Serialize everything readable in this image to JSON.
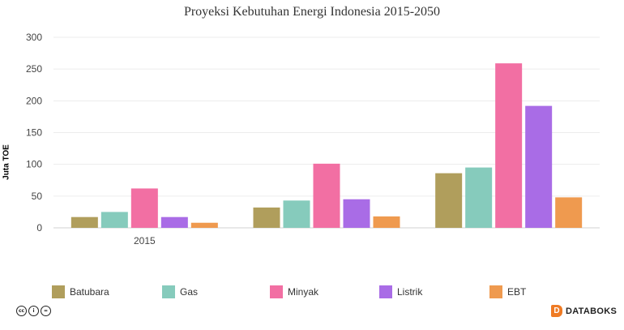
{
  "chart_data": {
    "type": "bar",
    "title": "Proyeksi Kebutuhan Energi Indonesia 2015-2050",
    "ylabel": "Juta TOE",
    "xlabel": "",
    "categories": [
      "2015",
      "",
      ""
    ],
    "ylim": [
      0,
      300
    ],
    "yticks": [
      0,
      50,
      100,
      150,
      200,
      250,
      300
    ],
    "grid": true,
    "legend_position": "bottom",
    "series": [
      {
        "name": "Batubara",
        "color": "#b09e5c",
        "values": [
          17,
          32,
          86
        ]
      },
      {
        "name": "Gas",
        "color": "#86cbbc",
        "values": [
          25,
          43,
          95
        ]
      },
      {
        "name": "Minyak",
        "color": "#f26fa3",
        "values": [
          62,
          101,
          259
        ]
      },
      {
        "name": "Listrik",
        "color": "#a96ce6",
        "values": [
          17,
          45,
          192
        ]
      },
      {
        "name": "EBT",
        "color": "#ef9a4f",
        "values": [
          8,
          18,
          48
        ]
      }
    ]
  },
  "footer": {
    "license_icons": [
      "cc-icon",
      "by-icon",
      "equals-icon"
    ],
    "license_glyphs": [
      "cc",
      "i",
      "="
    ],
    "brand_mark": "D",
    "brand_name": "DATABOKS"
  }
}
